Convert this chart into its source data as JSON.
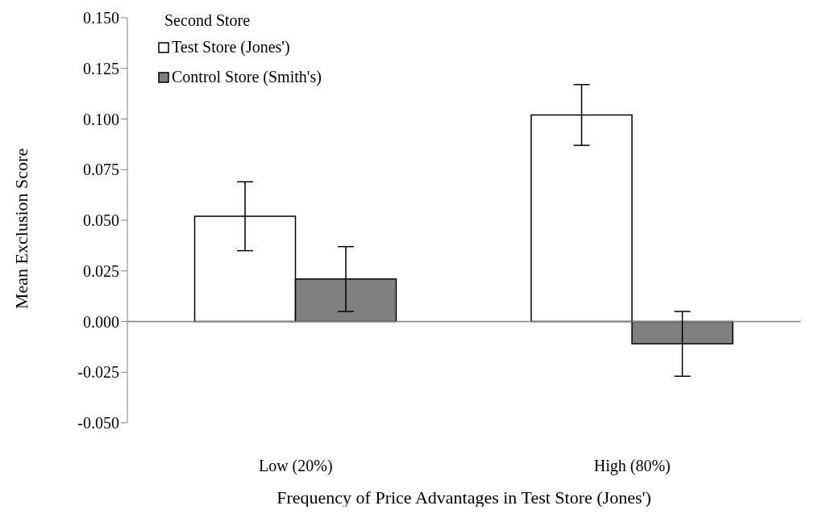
{
  "chart_data": {
    "type": "bar",
    "xlabel": "Frequency of Price Advantages in Test Store (Jones')",
    "ylabel": "Mean Exclusion Score",
    "legend_title": "Second Store",
    "categories": [
      "Low (20%)",
      "High (80%)"
    ],
    "series": [
      {
        "name": "Test Store (Jones')",
        "color": "#ffffff",
        "values": [
          0.052,
          0.102
        ],
        "errors": [
          [
            0.035,
            0.069
          ],
          [
            0.087,
            0.117
          ]
        ]
      },
      {
        "name": "Control Store (Smith's)",
        "color": "#808080",
        "values": [
          0.021,
          -0.011
        ],
        "errors": [
          [
            0.005,
            0.037
          ],
          [
            -0.027,
            0.005
          ]
        ]
      }
    ],
    "ylim": [
      -0.05,
      0.15
    ],
    "yticks": [
      {
        "value": -0.05,
        "label": "-0.050"
      },
      {
        "value": -0.025,
        "label": "-0.025"
      },
      {
        "value": 0,
        "label": "0.000"
      },
      {
        "value": 0.025,
        "label": "0.025"
      },
      {
        "value": 0.05,
        "label": "0.050"
      },
      {
        "value": 0.075,
        "label": "0.075"
      },
      {
        "value": 0.1,
        "label": "0.100"
      },
      {
        "value": 0.125,
        "label": "0.125"
      },
      {
        "value": 0.15,
        "label": "0.150"
      }
    ],
    "legend": "top left"
  }
}
